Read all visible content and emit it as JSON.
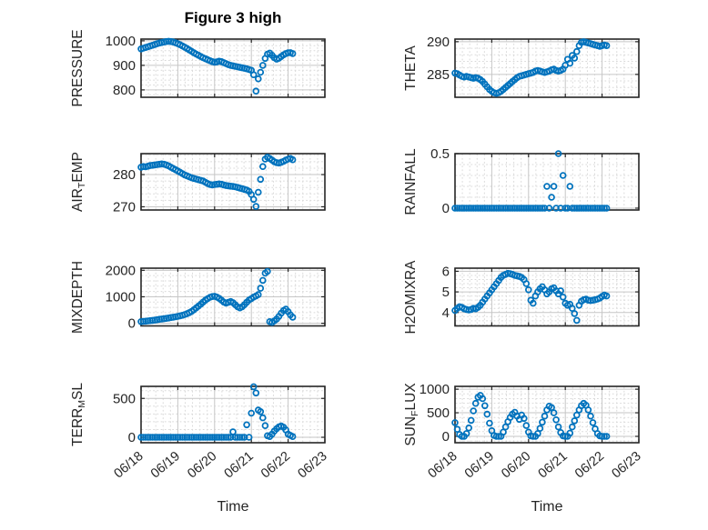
{
  "figure": {
    "background": "#ffffff",
    "marker_color": "#0072BD",
    "axis_color": "#262626",
    "grid_color": "#c6c6c6",
    "minor_grid_color": "#d9d9d9",
    "tick_label_color": "#262626"
  },
  "chart_data": {
    "type": "scatter",
    "title": "Figure 3 high",
    "xlabel": "Time",
    "marker": "o",
    "marker_color": "#0072BD",
    "grid": "major solid + minor dotted",
    "layout": "4 rows x 2 columns, shared time axis",
    "xlim": [
      0,
      5
    ],
    "xticks": [
      0,
      1,
      2,
      3,
      4,
      5
    ],
    "xtick_labels": [
      "06/18",
      "06/19",
      "06/20",
      "06/21",
      "06/22",
      "06/23"
    ],
    "xminor_step": 0.2,
    "x_unit": "days since 06/18 00:00",
    "x": [
      0,
      0.0625,
      0.125,
      0.1875,
      0.25,
      0.3125,
      0.375,
      0.4375,
      0.5,
      0.5625,
      0.625,
      0.6875,
      0.75,
      0.8125,
      0.875,
      0.9375,
      1,
      1.0625,
      1.125,
      1.1875,
      1.25,
      1.3125,
      1.375,
      1.4375,
      1.5,
      1.5625,
      1.625,
      1.6875,
      1.75,
      1.8125,
      1.875,
      1.9375,
      2,
      2.0625,
      2.125,
      2.1875,
      2.25,
      2.3125,
      2.375,
      2.4375,
      2.5,
      2.5625,
      2.625,
      2.6875,
      2.75,
      2.8125,
      2.875,
      2.9375,
      3,
      3.0625,
      3.125,
      3.1875,
      3.25,
      3.3125,
      3.375,
      3.4375,
      3.5,
      3.5625,
      3.625,
      3.6875,
      3.75,
      3.8125,
      3.875,
      3.9375,
      4,
      4.0625,
      4.125
    ],
    "series": [
      {
        "id": "pressure",
        "label": "PRESSURE",
        "label_parts": [
          [
            "PRESSURE",
            false
          ]
        ],
        "ylim": [
          770,
          1007
        ],
        "yticks": [
          800,
          900,
          1000
        ],
        "ytick_labels": [
          "800",
          "900",
          "1000"
        ],
        "yminor_step": 20,
        "values": [
          967,
          970,
          973,
          976,
          979,
          982,
          985,
          988,
          991,
          993,
          995,
          997,
          998,
          997,
          995,
          992,
          988,
          984,
          979,
          974,
          969,
          963,
          957,
          951,
          946,
          941,
          936,
          931,
          927,
          923,
          919,
          915,
          913,
          914,
          917,
          915,
          911,
          907,
          903,
          900,
          898,
          896,
          894,
          892,
          890,
          888,
          886,
          883,
          880,
          862,
          795,
          845,
          872,
          900,
          928,
          946,
          950,
          941,
          931,
          925,
          929,
          936,
          943,
          948,
          951,
          952,
          948
        ]
      },
      {
        "id": "theta",
        "label": "THETA",
        "label_parts": [
          [
            "THETA",
            false
          ]
        ],
        "ylim": [
          281.5,
          290.4
        ],
        "yticks": [
          285,
          290
        ],
        "ytick_labels": [
          "285",
          "290"
        ],
        "yminor_step": 1,
        "values": [
          285.2,
          285.1,
          284.9,
          284.7,
          284.6,
          284.7,
          284.6,
          284.5,
          284.4,
          284.5,
          284.4,
          284.2,
          283.9,
          283.5,
          283.1,
          282.7,
          282.4,
          282.2,
          282.1,
          282.2,
          282.4,
          282.7,
          283.0,
          283.3,
          283.6,
          283.9,
          284.2,
          284.5,
          284.7,
          284.8,
          284.9,
          285.0,
          285.1,
          285.2,
          285.3,
          285.5,
          285.6,
          285.5,
          285.4,
          285.3,
          285.4,
          285.5,
          285.7,
          285.8,
          285.6,
          285.5,
          285.6,
          285.8,
          286.4,
          287.3,
          286.7,
          287.9,
          287.5,
          288.5,
          289.4,
          289.9,
          290.0,
          289.9,
          289.8,
          289.7,
          289.6,
          289.5,
          289.4,
          289.3,
          289.4,
          289.5,
          289.4
        ]
      },
      {
        "id": "air-temp",
        "label": "AIR_TEMP",
        "label_parts": [
          [
            "AIR",
            false
          ],
          [
            "T",
            true
          ],
          [
            "EMP",
            false
          ]
        ],
        "ylim": [
          269,
          286.5
        ],
        "yticks": [
          270,
          280
        ],
        "ytick_labels": [
          "270",
          "280"
        ],
        "yminor_step": 2,
        "values": [
          282.3,
          282.5,
          282.4,
          282.6,
          282.8,
          282.9,
          283.0,
          283.1,
          283.2,
          283.3,
          283.2,
          283.0,
          282.7,
          282.3,
          281.9,
          281.5,
          281.1,
          280.7,
          280.3,
          279.9,
          279.6,
          279.3,
          279.0,
          278.8,
          278.6,
          278.4,
          278.2,
          278.0,
          277.6,
          277.2,
          276.9,
          276.8,
          276.9,
          277.0,
          277.1,
          277.0,
          276.8,
          276.6,
          276.5,
          276.4,
          276.3,
          276.2,
          276.0,
          275.8,
          275.6,
          275.4,
          275.2,
          274.8,
          273.8,
          272.3,
          270.1,
          274.5,
          278.5,
          282.5,
          284.8,
          285.4,
          285.0,
          284.5,
          284.0,
          283.7,
          283.6,
          283.8,
          284.1,
          284.5,
          284.8,
          285.0,
          284.6
        ]
      },
      {
        "id": "rainfall",
        "label": "RAINFALL",
        "label_parts": [
          [
            "RAINFALL",
            false
          ]
        ],
        "ylim": [
          -0.017,
          0.5
        ],
        "yticks": [
          0,
          0.5
        ],
        "ytick_labels": [
          "0",
          "0.5"
        ],
        "yminor_step": 0.1,
        "values": [
          0,
          0,
          0,
          0,
          0,
          0,
          0,
          0,
          0,
          0,
          0,
          0,
          0,
          0,
          0,
          0,
          0,
          0,
          0,
          0,
          0,
          0,
          0,
          0,
          0,
          0,
          0,
          0,
          0,
          0,
          0,
          0,
          0,
          0,
          0,
          0,
          0,
          0,
          0,
          0,
          0.2,
          0,
          0.1,
          0.2,
          0,
          0.5,
          0,
          0.3,
          0,
          0,
          0.2,
          0,
          0,
          0,
          0,
          0,
          0,
          0,
          0,
          0,
          0,
          0,
          0,
          0,
          0,
          0,
          0
        ]
      },
      {
        "id": "mixdepth",
        "label": "MIXDEPTH",
        "label_parts": [
          [
            "MIXDEPTH",
            false
          ]
        ],
        "ylim": [
          -100,
          2080
        ],
        "yticks": [
          0,
          1000,
          2000
        ],
        "ytick_labels": [
          "0",
          "1000",
          "2000"
        ],
        "yminor_step": 200,
        "values": [
          60,
          70,
          80,
          90,
          100,
          110,
          120,
          135,
          150,
          160,
          170,
          185,
          200,
          215,
          230,
          245,
          260,
          280,
          300,
          330,
          360,
          400,
          450,
          510,
          580,
          650,
          720,
          800,
          870,
          930,
          980,
          1010,
          1020,
          990,
          940,
          870,
          800,
          760,
          790,
          820,
          780,
          700,
          620,
          580,
          620,
          700,
          790,
          880,
          930,
          990,
          1030,
          1080,
          1320,
          1620,
          1890,
          1960,
          60,
          30,
          90,
          160,
          260,
          380,
          480,
          530,
          440,
          320,
          230
        ]
      },
      {
        "id": "h2omixra",
        "label": "H2OMIXRA",
        "label_parts": [
          [
            "H2OMIXRA",
            false
          ]
        ],
        "ylim": [
          3.35,
          6.15
        ],
        "yticks": [
          4,
          5,
          6
        ],
        "ytick_labels": [
          "4",
          "5",
          "6"
        ],
        "yminor_step": 0.2,
        "values": [
          4.1,
          4.2,
          4.28,
          4.25,
          4.18,
          4.15,
          4.12,
          4.15,
          4.2,
          4.18,
          4.25,
          4.35,
          4.5,
          4.65,
          4.8,
          4.95,
          5.1,
          5.25,
          5.4,
          5.55,
          5.7,
          5.8,
          5.85,
          5.9,
          5.88,
          5.85,
          5.8,
          5.78,
          5.75,
          5.7,
          5.6,
          5.4,
          5.1,
          4.6,
          4.45,
          4.8,
          5.0,
          5.15,
          5.25,
          5.1,
          4.9,
          5.0,
          5.15,
          5.2,
          5.05,
          4.9,
          5.05,
          4.75,
          4.45,
          4.35,
          4.4,
          4.2,
          3.95,
          3.62,
          4.35,
          4.55,
          4.62,
          4.65,
          4.6,
          4.58,
          4.6,
          4.62,
          4.65,
          4.7,
          4.78,
          4.85,
          4.8
        ]
      },
      {
        "id": "terr-msl",
        "label": "TERR_MSL",
        "label_parts": [
          [
            "TERR",
            false
          ],
          [
            "M",
            true
          ],
          [
            "SL",
            false
          ]
        ],
        "ylim": [
          -70,
          655
        ],
        "yticks": [
          0,
          500
        ],
        "ytick_labels": [
          "0",
          "500"
        ],
        "yminor_step": 100,
        "values": [
          0,
          0,
          0,
          0,
          0,
          0,
          0,
          0,
          0,
          0,
          0,
          0,
          0,
          0,
          0,
          0,
          0,
          0,
          0,
          0,
          0,
          0,
          0,
          0,
          0,
          0,
          0,
          0,
          0,
          0,
          0,
          0,
          0,
          0,
          0,
          0,
          0,
          0,
          0,
          0,
          70,
          0,
          0,
          0,
          0,
          0,
          160,
          0,
          310,
          650,
          570,
          350,
          330,
          250,
          150,
          20,
          10,
          40,
          80,
          110,
          135,
          145,
          130,
          95,
          40,
          25,
          10
        ]
      },
      {
        "id": "sun-flux",
        "label": "SUN_FLUX",
        "label_parts": [
          [
            "SUN",
            false
          ],
          [
            "F",
            true
          ],
          [
            "LUX",
            false
          ]
        ],
        "ylim": [
          -135,
          1060
        ],
        "yticks": [
          0,
          500,
          1000
        ],
        "ytick_labels": [
          "0",
          "500",
          "1000"
        ],
        "yminor_step": 100,
        "values": [
          290,
          150,
          40,
          0,
          0,
          60,
          180,
          340,
          540,
          700,
          830,
          870,
          800,
          650,
          470,
          280,
          120,
          20,
          0,
          0,
          0,
          90,
          200,
          310,
          400,
          470,
          510,
          430,
          360,
          450,
          380,
          230,
          90,
          10,
          0,
          0,
          60,
          170,
          300,
          430,
          560,
          640,
          610,
          500,
          350,
          200,
          80,
          10,
          0,
          0,
          70,
          200,
          330,
          450,
          560,
          650,
          700,
          660,
          560,
          430,
          290,
          160,
          60,
          10,
          0,
          0,
          0
        ]
      }
    ]
  }
}
